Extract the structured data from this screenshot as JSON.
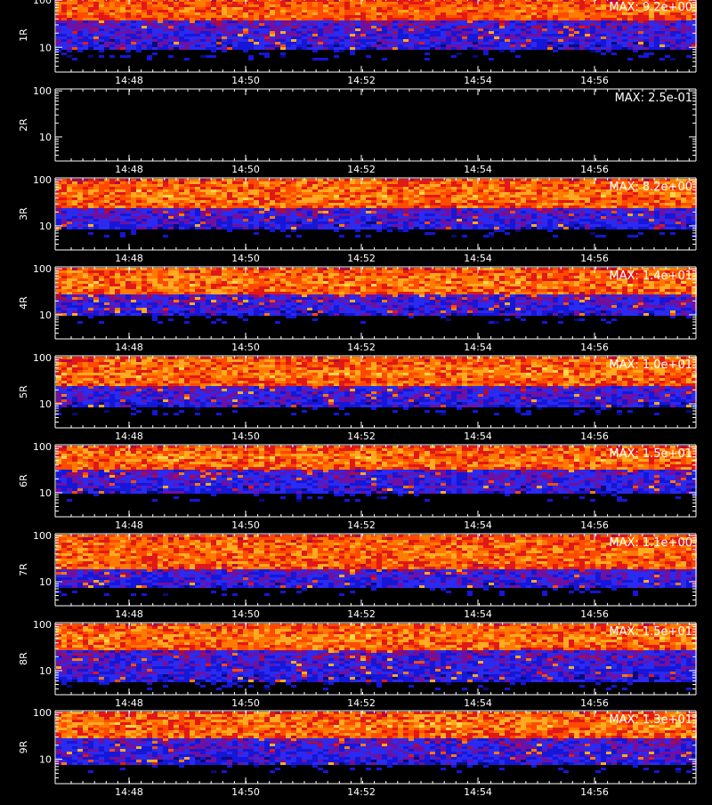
{
  "colors": {
    "background": "#000000",
    "axis": "#ffffff",
    "text": "#ffffff",
    "palette": [
      "#000000",
      "#0a0a78",
      "#1616d8",
      "#2a2af0",
      "#7010a0",
      "#b00a40",
      "#e01818",
      "#ff4a00",
      "#ff7a00",
      "#ffaa20",
      "#ffd84a",
      "#fff2a0"
    ]
  },
  "chart_data": [
    {
      "type": "heatmap",
      "ylabel": "1R",
      "max_label": "MAX: 9.2e+00",
      "y_ticks": [
        "100",
        "10"
      ],
      "x_ticks": [
        "14:48",
        "14:50",
        "14:52",
        "14:54",
        "14:56"
      ],
      "log_y": true,
      "y_range": [
        3,
        110
      ],
      "lower_edge": 9,
      "upper_band": [
        40,
        100
      ],
      "intensity": 0.6
    },
    {
      "type": "heatmap",
      "ylabel": "2R",
      "max_label": "MAX: 2.5e-01",
      "y_ticks": [
        "100",
        "10"
      ],
      "x_ticks": [
        "14:48",
        "14:50",
        "14:52",
        "14:54",
        "14:56"
      ],
      "log_y": true,
      "y_range": [
        3,
        110
      ],
      "lower_edge": 100,
      "upper_band": [
        100,
        100
      ],
      "intensity": 0
    },
    {
      "type": "heatmap",
      "ylabel": "3R",
      "max_label": "MAX: 8.2e+00",
      "y_ticks": [
        "100",
        "10"
      ],
      "x_ticks": [
        "14:48",
        "14:50",
        "14:52",
        "14:54",
        "14:56"
      ],
      "log_y": true,
      "y_range": [
        3,
        110
      ],
      "lower_edge": 9,
      "upper_band": [
        25,
        100
      ],
      "intensity": 0.75
    },
    {
      "type": "heatmap",
      "ylabel": "4R",
      "max_label": "MAX: 1.4e+01",
      "y_ticks": [
        "100",
        "10"
      ],
      "x_ticks": [
        "14:48",
        "14:50",
        "14:52",
        "14:54",
        "14:56"
      ],
      "log_y": true,
      "y_range": [
        3,
        110
      ],
      "lower_edge": 10,
      "upper_band": [
        30,
        100
      ],
      "intensity": 0.75
    },
    {
      "type": "heatmap",
      "ylabel": "5R",
      "max_label": "MAX: 1.0e+01",
      "y_ticks": [
        "100",
        "10"
      ],
      "x_ticks": [
        "14:48",
        "14:50",
        "14:52",
        "14:54",
        "14:56"
      ],
      "log_y": true,
      "y_range": [
        3,
        110
      ],
      "lower_edge": 9,
      "upper_band": [
        25,
        100
      ],
      "intensity": 0.75
    },
    {
      "type": "heatmap",
      "ylabel": "6R",
      "max_label": "MAX: 1.5e+01",
      "y_ticks": [
        "100",
        "10"
      ],
      "x_ticks": [
        "14:48",
        "14:50",
        "14:52",
        "14:54",
        "14:56"
      ],
      "log_y": true,
      "y_range": [
        3,
        110
      ],
      "lower_edge": 10,
      "upper_band": [
        35,
        100
      ],
      "intensity": 0.75
    },
    {
      "type": "heatmap",
      "ylabel": "7R",
      "max_label": "MAX: 1.1e+00",
      "y_ticks": [
        "100",
        "10"
      ],
      "x_ticks": [
        "14:48",
        "14:50",
        "14:52",
        "14:54",
        "14:56"
      ],
      "log_y": true,
      "y_range": [
        3,
        110
      ],
      "lower_edge": 8,
      "upper_band": [
        20,
        100
      ],
      "intensity": 0.7
    },
    {
      "type": "heatmap",
      "ylabel": "8R",
      "max_label": "MAX: 1.5e+01",
      "y_ticks": [
        "100",
        "10"
      ],
      "x_ticks": [
        "14:48",
        "14:50",
        "14:52",
        "14:54",
        "14:56"
      ],
      "log_y": true,
      "y_range": [
        3,
        110
      ],
      "lower_edge": 6,
      "upper_band": [
        30,
        100
      ],
      "intensity": 0.75
    },
    {
      "type": "heatmap",
      "ylabel": "9R",
      "max_label": "MAX: 1.3e+01",
      "y_ticks": [
        "100",
        "10"
      ],
      "x_ticks": [
        "14:48",
        "14:50",
        "14:52",
        "14:54",
        "14:56"
      ],
      "log_y": true,
      "y_range": [
        3,
        110
      ],
      "lower_edge": 8,
      "upper_band": [
        30,
        100
      ],
      "intensity": 0.75
    }
  ]
}
